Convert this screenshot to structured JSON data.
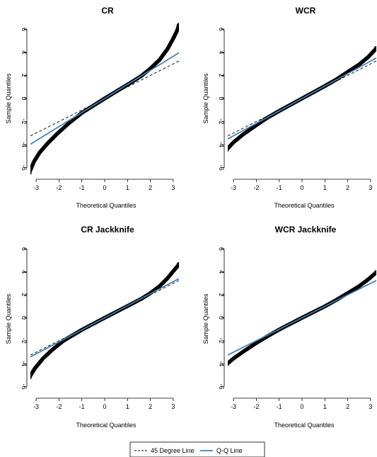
{
  "colors": {
    "points": "#000000",
    "qq_line": "#3f7fb5",
    "degree45_line": "#000000"
  },
  "legend": {
    "items": [
      {
        "label": "45 Degree Line",
        "style": "dashed",
        "color": "#000000"
      },
      {
        "label": "Q-Q Line",
        "style": "solid",
        "color": "#3f7fb5"
      }
    ],
    "position": "bottom-center"
  },
  "chart_data": [
    {
      "type": "scatter",
      "title": "CR",
      "xlabel": "Theoretical Quantiles",
      "ylabel": "Sample Quantiles",
      "xlim": [
        -3.25,
        3.25
      ],
      "ylim": [
        -6.7,
        6.7
      ],
      "xticks": [
        -3,
        -2,
        -1,
        0,
        1,
        2,
        3
      ],
      "yticks": [
        -6,
        -4,
        -2,
        0,
        2,
        4,
        6
      ],
      "qq_line": {
        "intercept": 0,
        "slope": 1.22
      },
      "degree45_line": {
        "intercept": 0,
        "slope": 1.0
      },
      "points": [
        [
          -3.3,
          -6.45
        ],
        [
          -3.1,
          -5.5
        ],
        [
          -2.85,
          -4.7
        ],
        [
          -2.5,
          -3.9
        ],
        [
          -2.1,
          -3.1
        ],
        [
          -1.6,
          -2.2
        ],
        [
          -1.0,
          -1.25
        ],
        [
          0,
          0
        ],
        [
          1.0,
          1.2
        ],
        [
          1.6,
          1.95
        ],
        [
          2.0,
          2.6
        ],
        [
          2.4,
          3.35
        ],
        [
          2.75,
          4.3
        ],
        [
          3.0,
          5.2
        ],
        [
          3.15,
          5.8
        ],
        [
          3.25,
          6.35
        ]
      ]
    },
    {
      "type": "scatter",
      "title": "WCR",
      "xlabel": "Theoretical Quantiles",
      "ylabel": "Sample Quantiles",
      "xlim": [
        -3.25,
        3.25
      ],
      "ylim": [
        -6.7,
        6.7
      ],
      "xticks": [
        -3,
        -2,
        -1,
        0,
        1,
        2,
        3
      ],
      "yticks": [
        -6,
        -4,
        -2,
        0,
        2,
        4,
        6
      ],
      "qq_line": {
        "intercept": 0,
        "slope": 1.08
      },
      "degree45_line": {
        "intercept": 0,
        "slope": 1.0
      },
      "points": [
        [
          -3.3,
          -4.45
        ],
        [
          -3.0,
          -3.8
        ],
        [
          -2.6,
          -3.15
        ],
        [
          -2.1,
          -2.45
        ],
        [
          -1.5,
          -1.65
        ],
        [
          -1.0,
          -1.08
        ],
        [
          0,
          0
        ],
        [
          1.0,
          1.08
        ],
        [
          1.5,
          1.65
        ],
        [
          2.0,
          2.3
        ],
        [
          2.5,
          2.95
        ],
        [
          2.9,
          3.6
        ],
        [
          3.25,
          4.35
        ]
      ]
    },
    {
      "type": "scatter",
      "title": "CR Jackknife",
      "xlabel": "Theoretical Quantiles",
      "ylabel": "Sample Quantiles",
      "xlim": [
        -3.25,
        3.25
      ],
      "ylim": [
        -6.7,
        6.7
      ],
      "xticks": [
        -3,
        -2,
        -1,
        0,
        1,
        2,
        3
      ],
      "yticks": [
        -6,
        -4,
        -2,
        0,
        2,
        4,
        6
      ],
      "qq_line": {
        "intercept": 0,
        "slope": 1.05
      },
      "degree45_line": {
        "intercept": 0,
        "slope": 1.0
      },
      "points": [
        [
          -3.3,
          -5.2
        ],
        [
          -3.05,
          -4.4
        ],
        [
          -2.7,
          -3.55
        ],
        [
          -2.3,
          -2.8
        ],
        [
          -1.8,
          -2.0
        ],
        [
          -1.0,
          -1.05
        ],
        [
          0,
          0
        ],
        [
          1.0,
          1.02
        ],
        [
          1.6,
          1.65
        ],
        [
          2.0,
          2.15
        ],
        [
          2.4,
          2.75
        ],
        [
          2.75,
          3.45
        ],
        [
          3.0,
          4.05
        ],
        [
          3.25,
          4.65
        ]
      ]
    },
    {
      "type": "scatter",
      "title": "WCR Jackknife",
      "xlabel": "Theoretical Quantiles",
      "ylabel": "Sample Quantiles",
      "xlim": [
        -3.25,
        3.25
      ],
      "ylim": [
        -6.7,
        6.7
      ],
      "xticks": [
        -3,
        -2,
        -1,
        0,
        1,
        2,
        3
      ],
      "yticks": [
        -6,
        -4,
        -2,
        0,
        2,
        4,
        6
      ],
      "qq_line": {
        "intercept": 0,
        "slope": 1.0
      },
      "degree45_line": {
        "intercept": 0,
        "slope": 1.0
      },
      "points": [
        [
          -3.3,
          -4.05
        ],
        [
          -3.0,
          -3.55
        ],
        [
          -2.5,
          -2.85
        ],
        [
          -2.0,
          -2.2
        ],
        [
          -1.5,
          -1.6
        ],
        [
          -1.0,
          -1.03
        ],
        [
          0,
          0
        ],
        [
          1.0,
          1.0
        ],
        [
          1.5,
          1.55
        ],
        [
          2.0,
          2.15
        ],
        [
          2.5,
          2.75
        ],
        [
          2.9,
          3.35
        ],
        [
          3.25,
          3.95
        ]
      ]
    }
  ]
}
